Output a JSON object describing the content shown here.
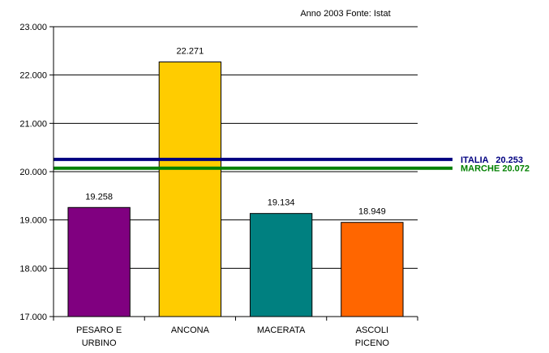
{
  "chart_data": {
    "type": "bar",
    "source_note": "Anno 2003 Fonte: Istat",
    "categories": [
      [
        "PESARO E",
        "URBINO"
      ],
      [
        "ANCONA"
      ],
      [
        "MACERATA"
      ],
      [
        "ASCOLI",
        "PICENO"
      ]
    ],
    "values": [
      19258,
      22271,
      19134,
      18949
    ],
    "value_labels": [
      "19.258",
      "22.271",
      "19.134",
      "18.949"
    ],
    "bar_colors": [
      "#800080",
      "#FFCC00",
      "#008080",
      "#FF6600"
    ],
    "ylim": [
      17000,
      23000
    ],
    "yticks": [
      17000,
      18000,
      19000,
      20000,
      21000,
      22000,
      23000
    ],
    "ytick_labels": [
      "17.000",
      "18.000",
      "19.000",
      "20.000",
      "21.000",
      "22.000",
      "23.000"
    ],
    "grid": true,
    "reference_lines": [
      {
        "label": "ITALIA   20.253",
        "value": 20253,
        "color": "#000080"
      },
      {
        "label": "MARCHE 20.072",
        "value": 20072,
        "color": "#008000"
      }
    ]
  }
}
